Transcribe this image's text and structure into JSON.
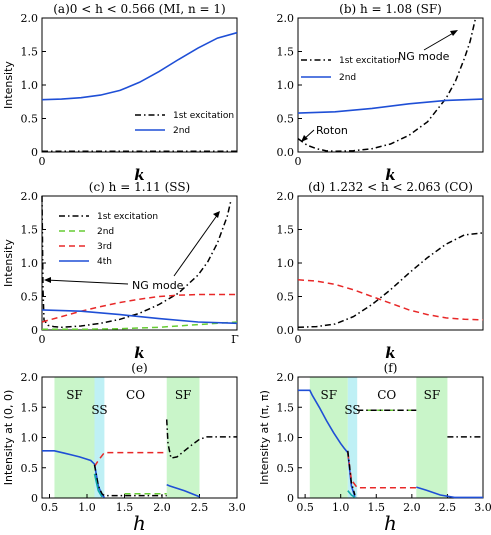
{
  "chart_data": [
    {
      "panel": "a",
      "type": "line",
      "title": "(a)0 < h < 0.566  (MI, n = 1)",
      "ylabel": "Intensity",
      "xlabel": "k",
      "xlim": [
        0,
        1
      ],
      "ylim": [
        0,
        2.0
      ],
      "yticks": [
        "2.0",
        "1.5",
        "1.0",
        "0.5",
        "0"
      ],
      "xticks": [
        "0"
      ],
      "legend": "bottom-right",
      "series": [
        {
          "name": "1st excitation",
          "color": "#000000",
          "style": "dashdot",
          "x": [
            0,
            1
          ],
          "y": [
            0.01,
            0.01
          ]
        },
        {
          "name": "2nd",
          "color": "#1f4fd6",
          "style": "solid",
          "x": [
            0,
            0.1,
            0.2,
            0.3,
            0.4,
            0.5,
            0.6,
            0.7,
            0.8,
            0.9,
            1.0
          ],
          "y": [
            0.78,
            0.79,
            0.81,
            0.85,
            0.92,
            1.04,
            1.2,
            1.38,
            1.55,
            1.7,
            1.78
          ]
        }
      ]
    },
    {
      "panel": "b",
      "type": "line",
      "title": "(b)         h = 1.08  (SF)",
      "ylabel": "",
      "xlabel": "k",
      "xlim": [
        0,
        1
      ],
      "ylim": [
        0,
        2.0
      ],
      "yticks": [
        "2.0",
        "1.5",
        "1.0",
        "0.5",
        "0.0"
      ],
      "xticks": [
        "0"
      ],
      "legend": "upper-middle",
      "annotations": [
        "NG mode",
        "Roton"
      ],
      "series": [
        {
          "name": "1st excitation",
          "color": "#000000",
          "style": "dashdot",
          "x": [
            0,
            0.05,
            0.1,
            0.15,
            0.2,
            0.3,
            0.4,
            0.5,
            0.6,
            0.7,
            0.8,
            0.85,
            0.9,
            0.93,
            0.96
          ],
          "y": [
            0.2,
            0.1,
            0.05,
            0.02,
            0.01,
            0.02,
            0.05,
            0.12,
            0.25,
            0.45,
            0.8,
            1.05,
            1.4,
            1.65,
            2.0
          ]
        },
        {
          "name": "2nd",
          "color": "#1f4fd6",
          "style": "solid",
          "x": [
            0,
            0.2,
            0.4,
            0.6,
            0.8,
            1.0
          ],
          "y": [
            0.58,
            0.6,
            0.65,
            0.72,
            0.77,
            0.79
          ]
        }
      ]
    },
    {
      "panel": "c",
      "type": "line",
      "title": "(c)         h = 1.11  (SS)",
      "ylabel": "Intensity",
      "xlabel": "k",
      "xlim": [
        0,
        1
      ],
      "ylim": [
        0,
        2.0
      ],
      "yticks": [
        "2.0",
        "1.5",
        "1.0",
        "0.5",
        "0"
      ],
      "xticks": [
        "0",
        "Γ"
      ],
      "legend": "top-center",
      "annotations": [
        "NG mode"
      ],
      "series": [
        {
          "name": "1st excitation",
          "color": "#000000",
          "style": "dashdot",
          "x": [
            0,
            0.005,
            0.01,
            0.03,
            0.06,
            0.1,
            0.2,
            0.3,
            0.4,
            0.5,
            0.6,
            0.7,
            0.8,
            0.85,
            0.9,
            0.95,
            0.97
          ],
          "y": [
            2.0,
            0.6,
            0.15,
            0.07,
            0.05,
            0.04,
            0.06,
            0.1,
            0.16,
            0.25,
            0.38,
            0.55,
            0.82,
            1.02,
            1.3,
            1.7,
            1.95
          ]
        },
        {
          "name": "2nd",
          "color": "#66cc33",
          "style": "dashed",
          "x": [
            0,
            0.2,
            0.4,
            0.6,
            0.8,
            1.0
          ],
          "y": [
            0.01,
            0.01,
            0.02,
            0.04,
            0.08,
            0.12
          ]
        },
        {
          "name": "3rd",
          "color": "#e82828",
          "style": "dashed",
          "x": [
            0,
            0.1,
            0.2,
            0.3,
            0.4,
            0.5,
            0.6,
            0.7,
            0.8,
            1.0
          ],
          "y": [
            0.12,
            0.2,
            0.28,
            0.35,
            0.41,
            0.46,
            0.5,
            0.52,
            0.53,
            0.53
          ]
        },
        {
          "name": "4th",
          "color": "#1f4fd6",
          "style": "solid",
          "x": [
            0,
            0.2,
            0.4,
            0.6,
            0.8,
            1.0
          ],
          "y": [
            0.3,
            0.28,
            0.23,
            0.17,
            0.12,
            0.1
          ]
        }
      ]
    },
    {
      "panel": "d",
      "type": "line",
      "title": "(d)  1.232 < h < 2.063  (CO)",
      "ylabel": "",
      "xlabel": "k",
      "xlim": [
        0,
        1
      ],
      "ylim": [
        0,
        2.0
      ],
      "yticks": [
        "2.0",
        "1.5",
        "1.0",
        "0.5",
        "0.0"
      ],
      "xticks": [
        "0"
      ],
      "series": [
        {
          "name": "",
          "color": "#000000",
          "style": "dashdot",
          "x": [
            0,
            0.1,
            0.2,
            0.3,
            0.4,
            0.5,
            0.6,
            0.7,
            0.8,
            0.9,
            1.0
          ],
          "y": [
            0.04,
            0.05,
            0.09,
            0.2,
            0.38,
            0.6,
            0.85,
            1.08,
            1.28,
            1.42,
            1.45
          ]
        },
        {
          "name": "",
          "color": "#e82828",
          "style": "dashed",
          "x": [
            0,
            0.1,
            0.2,
            0.3,
            0.4,
            0.5,
            0.6,
            0.7,
            0.8,
            0.9,
            1.0
          ],
          "y": [
            0.75,
            0.73,
            0.68,
            0.6,
            0.5,
            0.4,
            0.3,
            0.23,
            0.18,
            0.16,
            0.15
          ]
        }
      ]
    },
    {
      "panel": "e",
      "type": "line",
      "title": "(e)",
      "ylabel": "Intensity at (0, 0)",
      "xlabel": "h",
      "xlim": [
        0.4,
        3.0
      ],
      "ylim": [
        0,
        2.0
      ],
      "yticks": [
        "2.0",
        "1.5",
        "1.0",
        "0.5",
        "0"
      ],
      "xticks": [
        "0.5",
        "1.0",
        "1.5",
        "2.0",
        "2.5",
        "3.0"
      ],
      "regions": [
        {
          "label": "SF",
          "from": 0.566,
          "to": 1.1,
          "color": "#c9f5c9"
        },
        {
          "label": "SS",
          "from": 1.1,
          "to": 1.232,
          "color": "#bff0f5"
        },
        {
          "label": "CO",
          "from": 1.232,
          "to": 2.063,
          "color": ""
        },
        {
          "label": "SF",
          "from": 2.063,
          "to": 2.5,
          "color": "#c9f5c9"
        }
      ],
      "series": [
        {
          "name": "",
          "color": "#1f4fd6",
          "style": "solid",
          "x": [
            0.4,
            0.566,
            0.7,
            0.8,
            0.9,
            1.0,
            1.05,
            1.1,
            1.15,
            1.2,
            1.232
          ],
          "y": [
            0.78,
            0.78,
            0.74,
            0.71,
            0.68,
            0.64,
            0.62,
            0.56,
            0.2,
            0.05,
            0.01
          ]
        },
        {
          "name": "",
          "color": "#1f4fd6",
          "style": "solid",
          "x": [
            2.063,
            2.1,
            2.3,
            2.5
          ],
          "y": [
            0.22,
            0.2,
            0.12,
            0.02
          ]
        },
        {
          "name": "",
          "color": "#e82828",
          "style": "dashed",
          "x": [
            1.1,
            1.15,
            1.232,
            1.5,
            1.8,
            2.063
          ],
          "y": [
            0.52,
            0.62,
            0.75,
            0.75,
            0.75,
            0.75
          ]
        },
        {
          "name": "",
          "color": "#66cc33",
          "style": "dashed",
          "x": [
            1.5,
            2.063
          ],
          "y": [
            0.07,
            0.07
          ]
        },
        {
          "name": "",
          "color": "#000000",
          "style": "dashdot",
          "x": [
            1.1,
            1.15,
            1.2,
            1.232,
            1.5,
            2.063
          ],
          "y": [
            0.55,
            0.2,
            0.07,
            0.04,
            0.04,
            0.04
          ]
        },
        {
          "name": "",
          "color": "#000000",
          "style": "dashdot",
          "x": [
            2.063,
            2.08,
            2.12,
            2.2,
            2.3,
            2.4,
            2.5,
            2.6,
            3.0
          ],
          "y": [
            1.3,
            0.9,
            0.66,
            0.68,
            0.78,
            0.88,
            0.97,
            1.01,
            1.01
          ]
        },
        {
          "name": "",
          "color": "#11aaaa",
          "style": "solid",
          "x": [
            1.1,
            1.15,
            1.2
          ],
          "y": [
            0.4,
            0.12,
            0.02
          ]
        }
      ]
    },
    {
      "panel": "f",
      "type": "line",
      "title": "(f)",
      "ylabel": "Intensity at (π, π)",
      "xlabel": "h",
      "xlim": [
        0.4,
        3.0
      ],
      "ylim": [
        0,
        2.0
      ],
      "yticks": [
        "2.0",
        "1.5",
        "1.0",
        "0.5",
        "0"
      ],
      "xticks": [
        "0.5",
        "1.0",
        "1.5",
        "2.0",
        "2.5",
        "3.0"
      ],
      "regions": [
        {
          "label": "SF",
          "from": 0.566,
          "to": 1.1,
          "color": "#c9f5c9"
        },
        {
          "label": "SS",
          "from": 1.1,
          "to": 1.232,
          "color": "#bff0f5"
        },
        {
          "label": "CO",
          "from": 1.232,
          "to": 2.063,
          "color": ""
        },
        {
          "label": "SF",
          "from": 2.063,
          "to": 2.5,
          "color": "#c9f5c9"
        }
      ],
      "series": [
        {
          "name": "",
          "color": "#1f4fd6",
          "style": "solid",
          "x": [
            0.4,
            0.566,
            0.6,
            0.7,
            0.8,
            0.9,
            1.0,
            1.05,
            1.1,
            1.15,
            1.2
          ],
          "y": [
            1.78,
            1.78,
            1.7,
            1.5,
            1.28,
            1.08,
            0.9,
            0.82,
            0.75,
            0.2,
            0.02
          ]
        },
        {
          "name": "",
          "color": "#1f4fd6",
          "style": "solid",
          "x": [
            2.063,
            2.2,
            2.4,
            2.6,
            3.0
          ],
          "y": [
            0.18,
            0.13,
            0.05,
            0.01,
            0.01
          ]
        },
        {
          "name": "",
          "color": "#e82828",
          "style": "dashed",
          "x": [
            1.1,
            1.15,
            1.232,
            1.5,
            2.063
          ],
          "y": [
            0.75,
            0.3,
            0.17,
            0.17,
            0.17
          ]
        },
        {
          "name": "",
          "color": "#66cc33",
          "style": "dashed",
          "x": [
            1.232,
            2.063
          ],
          "y": [
            1.45,
            1.45
          ]
        },
        {
          "name": "",
          "color": "#000000",
          "style": "dashdot",
          "x": [
            1.1,
            1.15,
            1.2
          ],
          "y": [
            0.78,
            0.25,
            0.05
          ]
        },
        {
          "name": "",
          "color": "#000000",
          "style": "dashdot",
          "x": [
            1.232,
            2.063
          ],
          "y": [
            1.45,
            1.45
          ]
        },
        {
          "name": "",
          "color": "#000000",
          "style": "dashdot",
          "x": [
            2.5,
            3.0
          ],
          "y": [
            1.01,
            1.01
          ]
        },
        {
          "name": "",
          "color": "#11aaaa",
          "style": "solid",
          "x": [
            1.1,
            1.15,
            1.2
          ],
          "y": [
            0.12,
            0.05,
            0.01
          ]
        }
      ]
    }
  ]
}
